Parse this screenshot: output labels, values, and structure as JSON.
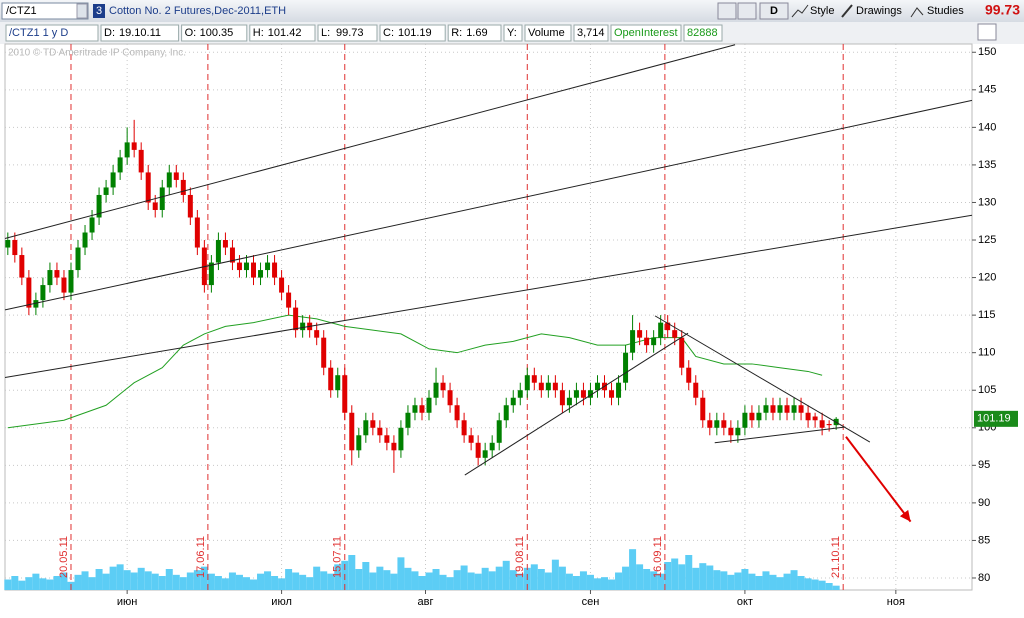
{
  "toolbar": {
    "symbol": "/CTZ1",
    "badge": "3",
    "description": "Cotton No. 2 Futures,Dec-2011,ETH",
    "buttons": [
      "D",
      "Style",
      "Drawings",
      "Studies"
    ],
    "last_price": 99.73
  },
  "info_bar": {
    "study": "/CTZ1 1 y D",
    "fields": [
      {
        "key": "D:",
        "value": "19.10.11"
      },
      {
        "key": "O:",
        "value": 100.35
      },
      {
        "key": "H:",
        "value": 101.42
      },
      {
        "key": "L:",
        "value": 99.73
      },
      {
        "key": "C:",
        "value": 101.19
      },
      {
        "key": "R:",
        "value": 1.69
      },
      {
        "key": "Y:",
        "value": null
      }
    ],
    "volume_label": "Volume",
    "volume_value": "3,714",
    "oi_label": "OpenInterest",
    "oi_value": 82888
  },
  "watermark": "2010 © TD Ameritrade IP Company, Inc.",
  "chart_data": {
    "type": "candlestick",
    "open": [
      124,
      125,
      123,
      120,
      116,
      117,
      119,
      121,
      120,
      118,
      121,
      124,
      126,
      128,
      131,
      132,
      134,
      136,
      138,
      137,
      134,
      130,
      129,
      132,
      134,
      133,
      131,
      128,
      124,
      119,
      122,
      125,
      124,
      122,
      121,
      122,
      120,
      121,
      122,
      120,
      118,
      116,
      113,
      114,
      113,
      112,
      108,
      105,
      107,
      102,
      97,
      99,
      101,
      100,
      99,
      98,
      97,
      100,
      102,
      103,
      102,
      104,
      106,
      105,
      103,
      101,
      99,
      98,
      96,
      97,
      98,
      101,
      103,
      104,
      105,
      107,
      106,
      105,
      106,
      105,
      103,
      104,
      105,
      104,
      105,
      106,
      105,
      104,
      106,
      110,
      113,
      112,
      111,
      112,
      114,
      113,
      112,
      108,
      106,
      104,
      101,
      100,
      101,
      100,
      99,
      100,
      102,
      101,
      102,
      103,
      102,
      103,
      102,
      103,
      102,
      101.5,
      101,
      100.5,
      100.35
    ],
    "high": [
      126,
      126,
      124,
      121,
      118,
      120,
      122,
      122,
      121,
      122,
      125,
      127,
      129,
      132,
      133,
      135,
      137,
      140,
      141,
      138,
      135,
      131,
      133,
      135,
      135,
      134,
      132,
      129,
      125,
      123,
      126,
      126,
      125,
      123,
      123,
      123,
      122,
      123,
      123,
      121,
      119,
      117,
      115,
      115,
      114,
      113,
      109,
      108,
      108,
      103,
      100,
      102,
      102,
      101,
      100,
      99,
      101,
      103,
      104,
      104,
      105,
      108,
      107,
      106,
      104,
      102,
      100,
      99,
      98,
      99,
      102,
      104,
      105,
      106,
      108,
      108,
      107,
      107,
      107,
      106,
      105,
      106,
      106,
      106,
      107,
      107,
      106,
      107,
      111,
      115,
      114,
      113,
      113,
      115,
      115,
      114,
      113,
      109,
      107,
      105,
      102,
      102,
      102,
      101,
      101,
      103,
      103,
      103,
      104,
      104,
      104,
      104,
      104,
      104,
      103,
      102,
      102,
      101,
      101.42
    ],
    "low": [
      123,
      122,
      119,
      115,
      115,
      116,
      118,
      119,
      117,
      117,
      120,
      123,
      125,
      127,
      130,
      131,
      133,
      135,
      136,
      133,
      129,
      128,
      128,
      131,
      132,
      130,
      127,
      123,
      118,
      118,
      121,
      123,
      121,
      120,
      120,
      119,
      119,
      120,
      119,
      117,
      115,
      112,
      112,
      112,
      111,
      107,
      104,
      104,
      101,
      95,
      96,
      98,
      99,
      98,
      97,
      94,
      96,
      99,
      101,
      101,
      101,
      103,
      104,
      102,
      100,
      98,
      97,
      95,
      95,
      96,
      97,
      100,
      102,
      103,
      104,
      105,
      104,
      104,
      104,
      102,
      102,
      103,
      103,
      103,
      104,
      104,
      103,
      103,
      105,
      109,
      111,
      110,
      110,
      111,
      112,
      111,
      107,
      105,
      103,
      100,
      99,
      99,
      99,
      98,
      98,
      99,
      100,
      100,
      101,
      101,
      101,
      101,
      101,
      101,
      100,
      100,
      99,
      99.5,
      99.73
    ],
    "close": [
      125,
      123,
      120,
      116,
      117,
      119,
      121,
      120,
      118,
      121,
      124,
      126,
      128,
      131,
      132,
      134,
      136,
      138,
      137,
      134,
      130,
      129,
      132,
      134,
      133,
      131,
      128,
      124,
      119,
      122,
      125,
      124,
      122,
      121,
      122,
      120,
      121,
      122,
      120,
      118,
      116,
      113,
      114,
      113,
      112,
      108,
      105,
      107,
      102,
      97,
      99,
      101,
      100,
      99,
      98,
      97,
      100,
      102,
      103,
      102,
      104,
      106,
      105,
      103,
      101,
      99,
      98,
      96,
      97,
      98,
      101,
      103,
      104,
      105,
      107,
      106,
      105,
      106,
      105,
      103,
      104,
      105,
      104,
      105,
      106,
      105,
      104,
      106,
      110,
      113,
      112,
      111,
      112,
      114,
      113,
      112,
      108,
      106,
      104,
      101,
      100,
      101,
      100,
      99,
      100,
      102,
      101,
      102,
      103,
      102,
      103,
      102,
      103,
      102,
      101,
      101,
      100,
      100.35,
      101.19
    ],
    "volume": [
      9000,
      12000,
      8000,
      11000,
      14000,
      10000,
      9000,
      12000,
      15000,
      7000,
      13000,
      16000,
      11000,
      18000,
      14000,
      20000,
      22000,
      17000,
      15000,
      19000,
      16000,
      14000,
      12000,
      18000,
      13000,
      11000,
      15000,
      17000,
      20000,
      14000,
      12000,
      10000,
      15000,
      13000,
      11000,
      9000,
      14000,
      16000,
      12000,
      10000,
      18000,
      15000,
      13000,
      11000,
      20000,
      16000,
      14000,
      22000,
      25000,
      30000,
      18000,
      24000,
      15000,
      20000,
      17000,
      14000,
      28000,
      19000,
      16000,
      12000,
      15000,
      18000,
      13000,
      11000,
      17000,
      21000,
      15000,
      14000,
      19000,
      16000,
      20000,
      25000,
      17000,
      14000,
      19000,
      22000,
      18000,
      15000,
      26000,
      20000,
      14000,
      12000,
      16000,
      13000,
      10000,
      11000,
      9000,
      15000,
      20000,
      35000,
      22000,
      18000,
      16000,
      14000,
      24000,
      27000,
      22000,
      30000,
      19000,
      23000,
      21000,
      17000,
      16000,
      13000,
      15000,
      18000,
      14000,
      12000,
      16000,
      13000,
      11000,
      14000,
      17000,
      12000,
      10000,
      9000,
      8000,
      6000,
      3714
    ],
    "vlim": [
      0,
      60000
    ],
    "up_color": "#008000",
    "down_color": "#e00000",
    "volume_color": "#5ccdf5",
    "moving_average": {
      "color": "#22a022",
      "x": [
        0,
        8,
        14,
        18,
        22,
        25,
        28,
        31,
        35,
        40,
        44,
        48,
        52,
        56,
        60,
        64,
        68,
        72,
        76,
        80,
        84,
        88,
        92,
        96,
        98,
        102,
        106,
        110,
        114,
        116
      ],
      "values": [
        100,
        101,
        103,
        106,
        108,
        111,
        112.5,
        113.5,
        114,
        115,
        114.5,
        113.5,
        113,
        112.5,
        110.5,
        110,
        111,
        111.5,
        112.5,
        112,
        111,
        111,
        112,
        112,
        109.5,
        108.5,
        108.5,
        108,
        107.5,
        107
      ]
    },
    "drawings": [
      {
        "type": "line",
        "color": "#222222",
        "x1": -0.4,
        "y1": 125.2,
        "x2": 103.6,
        "y2": 151
      },
      {
        "type": "line",
        "color": "#222222",
        "x1": -0.4,
        "y1": 115.7,
        "x2": 137.35,
        "y2": 143.6
      },
      {
        "type": "line",
        "color": "#222222",
        "x1": -0.4,
        "y1": 106.7,
        "x2": 137.35,
        "y2": 128.3
      },
      {
        "type": "line",
        "color": "#222222",
        "x1": 65.1,
        "y1": 93.7,
        "x2": 96.9,
        "y2": 112.6
      },
      {
        "type": "line",
        "color": "#222222",
        "x1": 92.2,
        "y1": 114.9,
        "x2": 122.8,
        "y2": 98.1
      },
      {
        "type": "line",
        "color": "#222222",
        "x1": 100.7,
        "y1": 98,
        "x2": 119.3,
        "y2": 100.1
      },
      {
        "type": "arrow",
        "color": "#e00000",
        "x1": 119.4,
        "y1": 98.8,
        "x2": 128.6,
        "y2": 87.5
      }
    ],
    "date_markers": [
      {
        "x": 9,
        "label": "20.05.11"
      },
      {
        "x": 28.5,
        "label": "17.06.11"
      },
      {
        "x": 48,
        "label": "15.07.11"
      },
      {
        "x": 74,
        "label": "19.08.11"
      },
      {
        "x": 93.6,
        "label": "16.09.11"
      },
      {
        "x": 119,
        "label": "21.10.11"
      }
    ],
    "xlim": [
      -0.4,
      137.35
    ],
    "ylim": [
      78.4,
      151.1
    ],
    "xticks": [
      {
        "value": 17,
        "label": "июн"
      },
      {
        "value": 39,
        "label": "июл"
      },
      {
        "value": 59.5,
        "label": "авг"
      },
      {
        "value": 83,
        "label": "сен"
      },
      {
        "value": 105,
        "label": "окт"
      },
      {
        "value": 126.5,
        "label": "ноя"
      }
    ],
    "yticks": [
      80,
      85,
      90,
      95,
      100,
      105,
      110,
      115,
      120,
      125,
      130,
      135,
      140,
      145,
      150
    ],
    "grid": true,
    "last_price_color": "#1a8a1a"
  }
}
